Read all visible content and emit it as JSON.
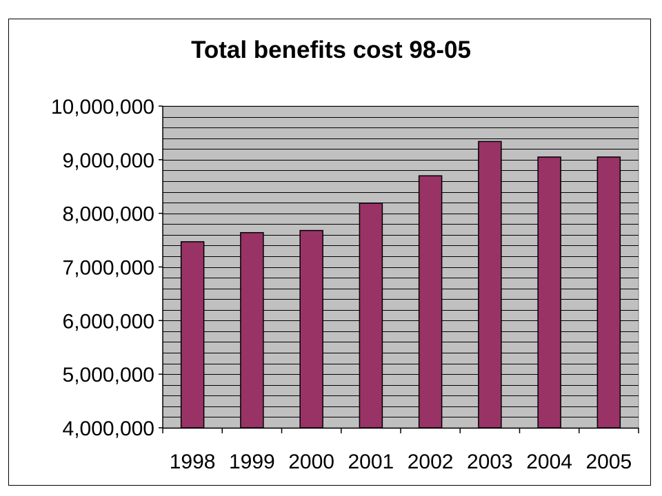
{
  "chart_data": {
    "type": "bar",
    "title": "Total benefits cost 98-05",
    "xlabel": "",
    "ylabel": "",
    "categories": [
      "1998",
      "1999",
      "2000",
      "2001",
      "2002",
      "2003",
      "2004",
      "2005"
    ],
    "values": [
      7470000,
      7640000,
      7680000,
      8190000,
      8700000,
      9340000,
      9050000,
      9050000
    ],
    "ylim": [
      4000000,
      10000000
    ],
    "y_ticks": [
      "4,000,000",
      "5,000,000",
      "6,000,000",
      "7,000,000",
      "8,000,000",
      "9,000,000",
      "10,000,000"
    ],
    "y_tick_values": [
      4000000,
      5000000,
      6000000,
      7000000,
      8000000,
      9000000,
      10000000
    ],
    "y_minor_step": 200000,
    "grid": true,
    "legend": "none",
    "colors": {
      "bar": "#993366",
      "plot_background": "#c0c0c0",
      "gridline": "#000000",
      "axis": "#000000"
    }
  }
}
